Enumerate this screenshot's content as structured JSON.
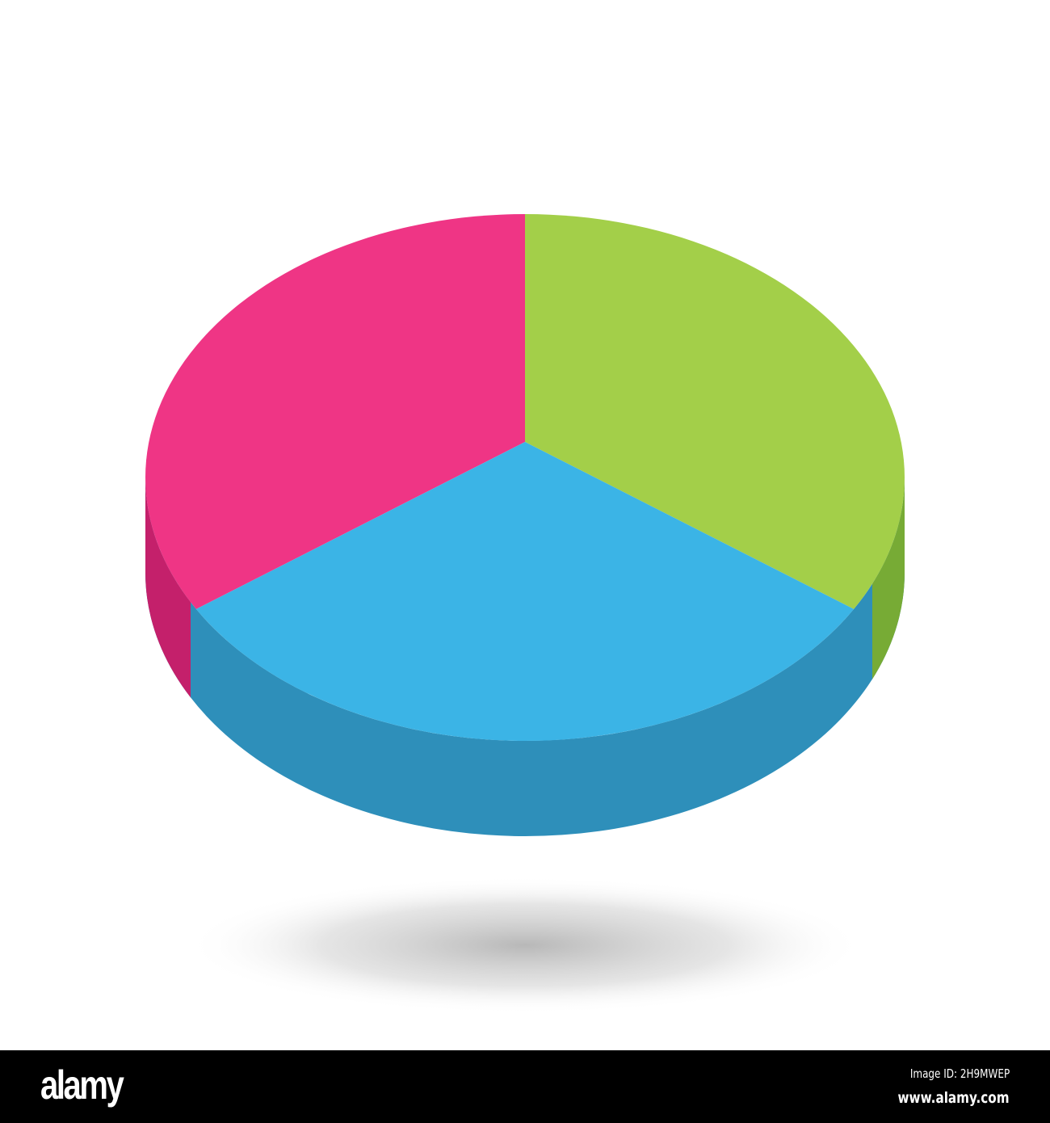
{
  "chart_data": {
    "type": "pie",
    "style": "3d",
    "title": "",
    "values": [
      33.33,
      33.33,
      33.34
    ],
    "colors": [
      "#ef3585",
      "#a3cf49",
      "#3bb4e6"
    ],
    "side_colors": [
      "#c4206b",
      "#77ab35",
      "#2e8fba"
    ],
    "legend": "none"
  },
  "footer": {
    "logo": "alamy",
    "image_id": "Image ID: 2H9MWEP",
    "site": "www.alamy.com"
  }
}
